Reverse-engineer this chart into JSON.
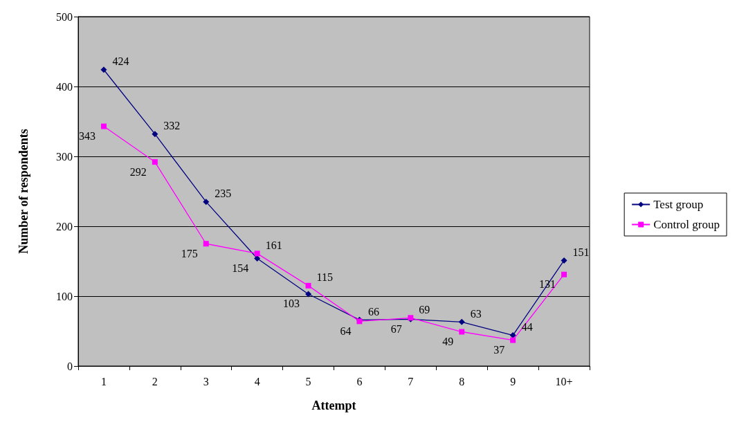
{
  "chart_data": {
    "type": "line",
    "xlabel": "Attempt",
    "ylabel": "Number of respondents",
    "categories": [
      "1",
      "2",
      "3",
      "4",
      "5",
      "6",
      "7",
      "8",
      "9",
      "10+"
    ],
    "series": [
      {
        "name": "Test group",
        "color": "#000080",
        "marker": "diamond",
        "values": [
          424,
          332,
          235,
          154,
          103,
          66,
          67,
          63,
          44,
          151
        ]
      },
      {
        "name": "Control group",
        "color": "#ff00ff",
        "marker": "square",
        "values": [
          343,
          292,
          175,
          161,
          115,
          64,
          69,
          49,
          37,
          131
        ]
      }
    ],
    "ylim": [
      0,
      500
    ],
    "yticks": [
      0,
      100,
      200,
      300,
      400,
      500
    ],
    "grid": "y",
    "legend": "right",
    "data_labels": true
  }
}
